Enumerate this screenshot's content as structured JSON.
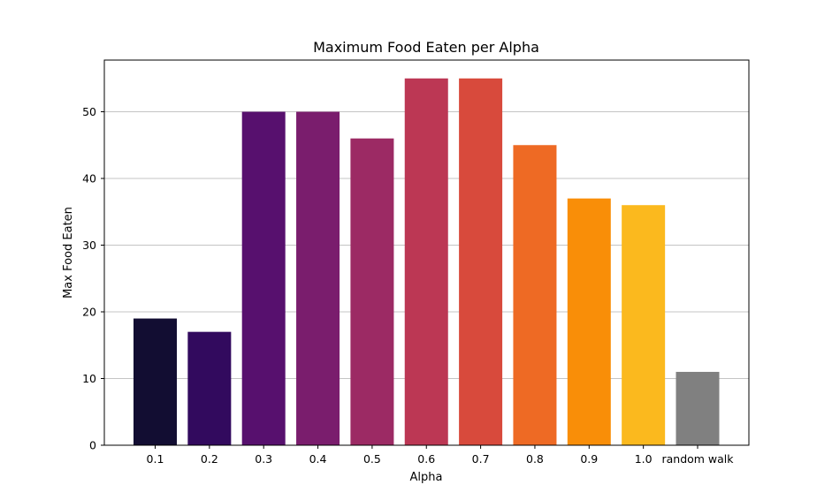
{
  "chart_data": {
    "type": "bar",
    "title": "Maximum Food Eaten per Alpha",
    "xlabel": "Alpha",
    "ylabel": "Max Food Eaten",
    "categories": [
      "0.1",
      "0.2",
      "0.3",
      "0.4",
      "0.5",
      "0.6",
      "0.7",
      "0.8",
      "0.9",
      "1.0",
      "random walk"
    ],
    "values": [
      19,
      17,
      50,
      50,
      46,
      55,
      55,
      45,
      37,
      36,
      11
    ],
    "colors": [
      "#120d32",
      "#320a5e",
      "#57106e",
      "#7a1d6d",
      "#9c2a64",
      "#bc3754",
      "#d84a3c",
      "#ee6a24",
      "#f98e08",
      "#fbb91e",
      "#808080"
    ],
    "ylim": [
      0,
      57.75
    ],
    "yticks": [
      0,
      10,
      20,
      30,
      40,
      50
    ],
    "grid": "y-major",
    "legend": "none"
  }
}
